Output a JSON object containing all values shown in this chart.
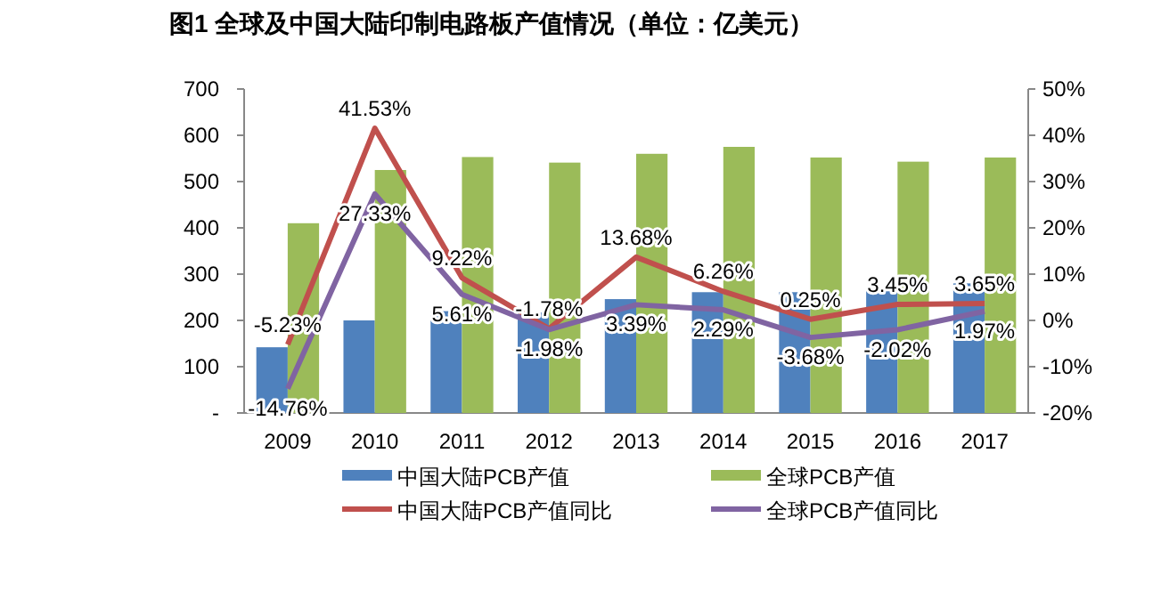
{
  "chart_data": {
    "type": "bar",
    "title": "图1    全球及中国大陆印制电路板产值情况（单位：亿美元）",
    "categories": [
      "2009",
      "2010",
      "2011",
      "2012",
      "2013",
      "2014",
      "2015",
      "2016",
      "2017"
    ],
    "series": [
      {
        "name": "中国大陆PCB产值",
        "color": "#4f81bd",
        "values": [
          142,
          200,
          220,
          217,
          246,
          261,
          261,
          268,
          280
        ]
      },
      {
        "name": "全球PCB产值",
        "color": "#9bbb59",
        "values": [
          410,
          525,
          553,
          541,
          560,
          575,
          552,
          543,
          552
        ]
      },
      {
        "name": "中国大陆PCB产值同比",
        "type": "line",
        "axis": "y2",
        "color": "#c0504d",
        "values": [
          -5.23,
          41.53,
          9.22,
          -1.78,
          13.68,
          6.26,
          0.25,
          3.45,
          3.65
        ],
        "value_labels": [
          "-5.23%",
          "41.53%",
          "9.22%",
          "-1.78%",
          "13.68%",
          "6.26%",
          "0.25%",
          "3.45%",
          "3.65%"
        ]
      },
      {
        "name": "全球PCB产值同比",
        "type": "line",
        "axis": "y2",
        "color": "#8064a2",
        "values": [
          -14.76,
          27.33,
          5.61,
          -1.98,
          3.39,
          2.29,
          -3.68,
          -2.02,
          1.97
        ],
        "value_labels": [
          "-14.76%",
          "27.33%",
          "5.61%",
          "-1.98%",
          "3.39%",
          "2.29%",
          "-3.68%",
          "-2.02%",
          "1.97%"
        ]
      }
    ],
    "ylim": [
      0,
      700
    ],
    "yticks": [
      {
        "value": 0,
        "label": "-"
      },
      100,
      200,
      300,
      400,
      500,
      600,
      700
    ],
    "y2lim": [
      -20,
      50
    ],
    "y2ticks": [
      {
        "value": -20,
        "label": "-20%"
      },
      {
        "value": -10,
        "label": "-10%"
      },
      {
        "value": 0,
        "label": "0%"
      },
      {
        "value": 10,
        "label": "10%"
      },
      {
        "value": 20,
        "label": "20%"
      },
      {
        "value": 30,
        "label": "30%"
      },
      {
        "value": 40,
        "label": "40%"
      },
      {
        "value": 50,
        "label": "50%"
      }
    ],
    "legend": "bottom",
    "grid": false
  }
}
